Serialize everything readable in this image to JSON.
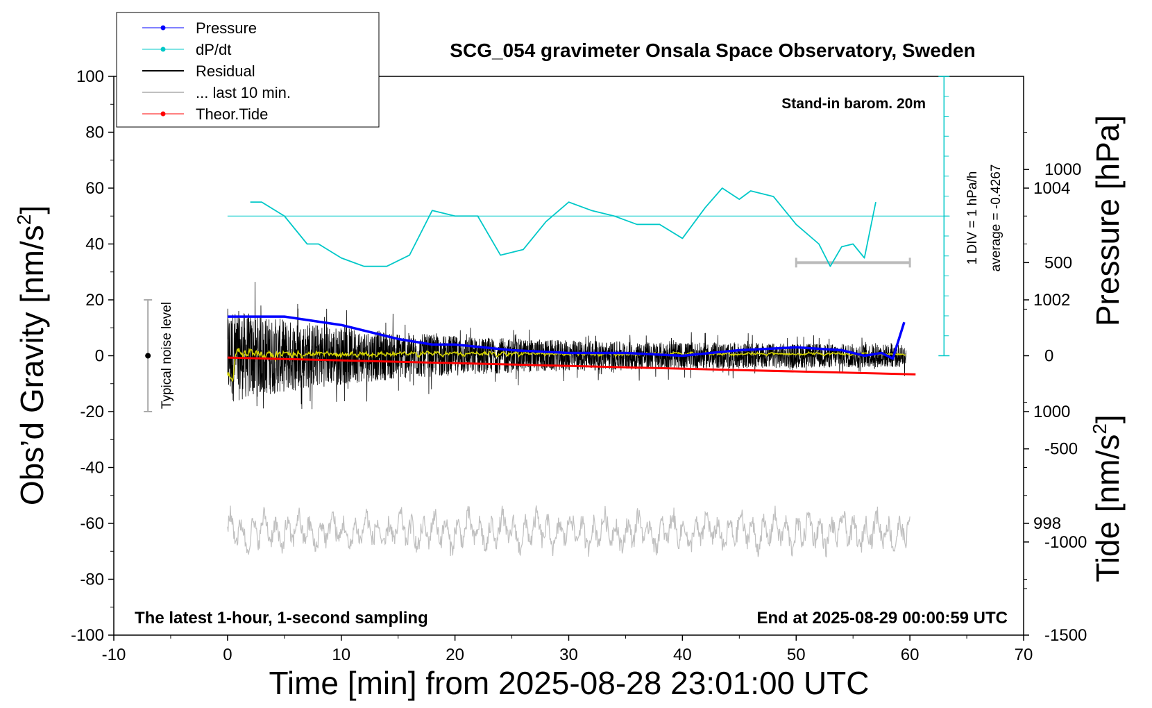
{
  "chart_data": {
    "type": "line",
    "title": "SCG_054 gravimeter Onsala Space Observatory, Sweden",
    "xlabel": "Time [min] from 2025-08-28 23:01:00 UTC",
    "ylabel_left": "Obs’d Gravity [nm/s",
    "ylabel_left_sup": "2",
    "ylabel_left_close": "]",
    "ylabel_right_pressure": "Pressure [hPa]",
    "ylabel_right_tide": "Tide [nm/s",
    "ylabel_right_tide_sup": "2",
    "ylabel_right_tide_close": "]",
    "xlim": [
      -10,
      70
    ],
    "ylim": [
      -100,
      100
    ],
    "pressure_lim": [
      996,
      1006
    ],
    "tide_lim": [
      -1500,
      1500
    ],
    "x_ticks": [
      "-10",
      "0",
      "10",
      "20",
      "30",
      "40",
      "50",
      "60",
      "70"
    ],
    "y_ticks": [
      "100",
      "80",
      "60",
      "40",
      "20",
      "0",
      "-20",
      "-40",
      "-60",
      "-80",
      "-100"
    ],
    "pressure_ticks": [
      "1004",
      "1002",
      "1000",
      "998"
    ],
    "tide_ticks": [
      "1000",
      "500",
      "0",
      "-500",
      "-1000",
      "-1500"
    ],
    "annotations": {
      "stand_in": "Stand-in barom. 20m",
      "div_label": "1 DIV = 1 hPa/h",
      "average_label": "average = -0.4267",
      "noise_label": "Typical noise level",
      "bottom_left": "The latest 1-hour, 1-second sampling",
      "bottom_right": "End at 2025-08-29 00:00:59 UTC"
    },
    "legend": {
      "placement": "top-left",
      "entries": [
        "Pressure",
        "dP/dt",
        "Residual",
        "... last 10 min.",
        "Theor.Tide"
      ]
    },
    "colors": {
      "pressure": "#0000ff",
      "dpdt": "#00c8c8",
      "residual": "#000000",
      "last10": "#c0c0c0",
      "tide": "#ff0000",
      "smoothed": "#d4d400"
    },
    "series": [
      {
        "name": "Pressure",
        "unit": "hPa",
        "x": [
          0,
          5,
          10,
          15,
          18,
          20,
          25,
          30,
          35,
          40,
          45,
          50,
          54,
          56,
          57.5,
          58.5,
          59.5
        ],
        "values": [
          1001.7,
          1001.7,
          1001.55,
          1001.3,
          1001.2,
          1001.2,
          1001.1,
          1001.05,
          1001.05,
          1001.0,
          1001.1,
          1001.15,
          1001.1,
          1001.0,
          1001.05,
          1000.95,
          1001.6
        ]
      },
      {
        "name": "dP/dt",
        "unit": "nm/s2 (scaled)",
        "x": [
          2,
          3,
          5,
          7,
          8,
          10,
          12,
          14,
          16,
          18,
          20,
          22,
          24,
          26,
          28,
          30,
          32,
          34,
          36,
          38,
          40,
          42,
          43.5,
          45,
          46,
          48,
          50,
          52,
          53,
          54,
          55,
          56,
          57
        ],
        "values": [
          55,
          55,
          50,
          40,
          40,
          35,
          32,
          32,
          36,
          52,
          50,
          50,
          36,
          38,
          48,
          55,
          52,
          50,
          47,
          47,
          42,
          53,
          60,
          56,
          59,
          57,
          47,
          40,
          32,
          39,
          40,
          35,
          55
        ]
      },
      {
        "name": "Theor.Tide",
        "unit": "nm/s2",
        "x": [
          0,
          60.5
        ],
        "values": [
          -10,
          -100
        ]
      }
    ]
  },
  "scale_bar": {
    "x_range_min": [
      50,
      60
    ],
    "tide_level": 500
  }
}
